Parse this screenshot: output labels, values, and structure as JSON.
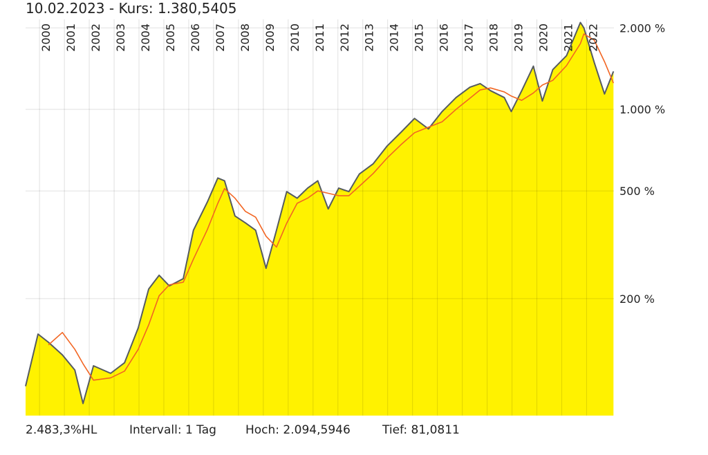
{
  "header": "10.02.2023  - Kurs: 1.380,5405",
  "chart_data": {
    "type": "area-line",
    "log_y": true,
    "grid": true,
    "fill_color": "#fff200",
    "xlim": [
      1999.44,
      2023.1
    ],
    "xticks": [
      2000,
      2001,
      2002,
      2003,
      2004,
      2005,
      2006,
      2007,
      2008,
      2009,
      2010,
      2011,
      2012,
      2013,
      2014,
      2015,
      2016,
      2017,
      2018,
      2019,
      2020,
      2021,
      2022
    ],
    "ylim": [
      74,
      2150
    ],
    "yticks": [
      {
        "value": 2000,
        "label": "2.000 %"
      },
      {
        "value": 1000,
        "label": "1.000 %"
      },
      {
        "value": 500,
        "label": "500 %"
      },
      {
        "value": 200,
        "label": "200 %"
      }
    ],
    "x": [
      1999.44,
      1999.94,
      2000.36,
      2000.92,
      2001.42,
      2001.75,
      2002.17,
      2002.86,
      2003.42,
      2003.97,
      2004.39,
      2004.81,
      2005.22,
      2005.78,
      2006.19,
      2006.75,
      2007.17,
      2007.44,
      2007.86,
      2008.28,
      2008.69,
      2009.11,
      2009.53,
      2009.94,
      2010.36,
      2010.78,
      2011.19,
      2011.61,
      2012.03,
      2012.44,
      2012.86,
      2013.42,
      2013.97,
      2014.53,
      2015.08,
      2015.64,
      2016.19,
      2016.75,
      2017.31,
      2017.72,
      2018.14,
      2018.69,
      2018.97,
      2019.39,
      2019.86,
      2020.22,
      2020.64,
      2021.19,
      2021.75,
      2021.89,
      2022.31,
      2022.72,
      2023.08
    ],
    "series": [
      {
        "color": "#555b60",
        "values": [
          95,
          148,
          138,
          124,
          109,
          82,
          113,
          106,
          116,
          156,
          217,
          244,
          223,
          237,
          358,
          455,
          558,
          545,
          404,
          381,
          358,
          259,
          358,
          497,
          470,
          512,
          545,
          429,
          512,
          497,
          577,
          630,
          731,
          822,
          926,
          847,
          982,
          1106,
          1208,
          1245,
          1172,
          1106,
          982,
          1172,
          1444,
          1074,
          1402,
          1578,
          2094,
          2000,
          1487,
          1140,
          1381
        ]
      },
      {
        "color": "#f26522",
        "values": [
          null,
          null,
          135,
          150,
          130,
          115,
          100,
          102,
          108,
          130,
          160,
          205,
          225,
          230,
          280,
          360,
          450,
          510,
          470,
          420,
          400,
          340,
          310,
          380,
          450,
          470,
          500,
          490,
          480,
          480,
          520,
          580,
          660,
          740,
          820,
          860,
          900,
          1000,
          1100,
          1180,
          1200,
          1160,
          1120,
          1080,
          1150,
          1230,
          1280,
          1450,
          1750,
          1900,
          1800,
          1500,
          1250
        ]
      }
    ]
  },
  "footer": [
    "2.483,3%HL",
    "Intervall: 1 Tag",
    "Hoch: 2.094,5946",
    "Tief: 81,0811"
  ]
}
